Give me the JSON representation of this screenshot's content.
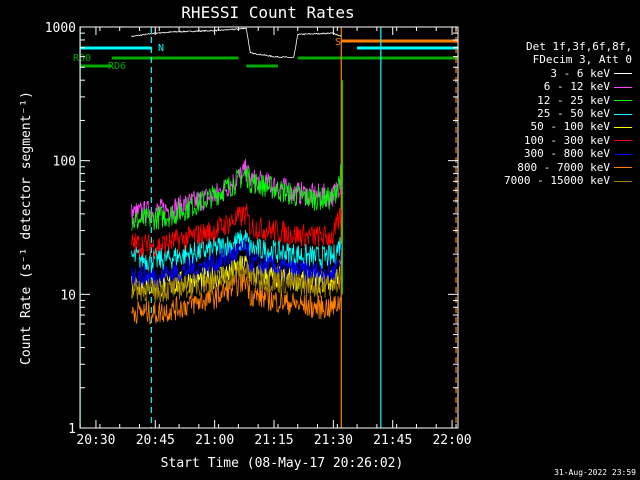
{
  "chart_data": {
    "type": "line",
    "title": "RHESSI Count Rates",
    "xlabel": "Start Time (08-May-17 20:26:02)",
    "ylabel": "Count Rate (s⁻¹ detector segment⁻¹)",
    "yscale": "log",
    "ylim": [
      1,
      1000
    ],
    "xlim_minutes_after_2026": [
      -0.03,
      95.5
    ],
    "x_tick_labels": [
      "20:30",
      "20:45",
      "21:00",
      "21:15",
      "21:30",
      "21:45",
      "22:00"
    ],
    "y_tick_labels": [
      "1",
      "10",
      "100",
      "1000"
    ],
    "legend": {
      "placement": "right",
      "header": [
        "Det 1f,3f,6f,8f,",
        "FDecim 3, Att 0"
      ],
      "entries": [
        "3 - 6 keV",
        "6 - 12 keV",
        "12 - 25 keV",
        "25 - 50 keV",
        "50 - 100 keV",
        "100 - 300 keV",
        "300 - 800 keV",
        "800 - 7000 keV",
        "7000 - 15000 keV"
      ]
    },
    "series": [
      {
        "name": "3 - 6 keV",
        "color": "#ffffff",
        "times": [
          "20:39",
          "20:45",
          "20:50",
          "21:00",
          "21:05",
          "21:08",
          "21:09",
          "21:15",
          "21:20",
          "21:21",
          "21:30",
          "21:32"
        ],
        "values": [
          850,
          900,
          920,
          940,
          960,
          980,
          640,
          600,
          590,
          880,
          900,
          850
        ]
      },
      {
        "name": "6 - 12 keV",
        "color": "#ff44ff",
        "times": [
          "20:39",
          "20:45",
          "20:50",
          "21:00",
          "21:05",
          "21:08",
          "21:09",
          "21:15",
          "21:20",
          "21:25",
          "21:30",
          "21:32"
        ],
        "values": [
          40,
          42,
          44,
          55,
          70,
          85,
          72,
          65,
          58,
          55,
          55,
          70
        ]
      },
      {
        "name": "12 - 25 keV",
        "color": "#00ff00",
        "times": [
          "20:39",
          "20:45",
          "20:50",
          "21:00",
          "21:05",
          "21:08",
          "21:09",
          "21:15",
          "21:20",
          "21:25",
          "21:30",
          "21:32"
        ],
        "values": [
          35,
          37,
          40,
          55,
          68,
          80,
          70,
          62,
          55,
          52,
          52,
          80
        ]
      },
      {
        "name": "25 - 50 keV",
        "color": "#00ffff",
        "times": [
          "20:39",
          "20:45",
          "20:50",
          "21:00",
          "21:05",
          "21:08",
          "21:09",
          "21:15",
          "21:20",
          "21:25",
          "21:30",
          "21:32"
        ],
        "values": [
          19,
          18,
          19,
          22,
          24,
          26,
          22,
          21,
          20,
          19,
          19,
          25
        ]
      },
      {
        "name": "50 - 100 keV",
        "color": "#ffff00",
        "times": [
          "20:39",
          "20:45",
          "20:50",
          "21:00",
          "21:05",
          "21:08",
          "21:09",
          "21:15",
          "21:20",
          "21:25",
          "21:30",
          "21:32"
        ],
        "values": [
          12,
          11.5,
          12,
          13.5,
          15,
          17,
          14,
          13.5,
          13,
          12.5,
          12.5,
          16
        ]
      },
      {
        "name": "100 - 300 keV",
        "color": "#ff0000",
        "times": [
          "20:39",
          "20:45",
          "20:50",
          "21:00",
          "21:05",
          "21:08",
          "21:09",
          "21:15",
          "21:20",
          "21:25",
          "21:30",
          "21:32"
        ],
        "values": [
          24,
          23,
          25,
          30,
          36,
          40,
          32,
          30,
          28,
          27,
          27,
          40
        ]
      },
      {
        "name": "300 - 800 keV",
        "color": "#0000ff",
        "times": [
          "20:39",
          "20:45",
          "20:50",
          "21:00",
          "21:05",
          "21:08",
          "21:09",
          "21:15",
          "21:20",
          "21:25",
          "21:30",
          "21:32"
        ],
        "values": [
          14,
          13.5,
          14.5,
          17,
          20,
          22,
          17,
          16,
          15,
          14.5,
          14.5,
          20
        ]
      },
      {
        "name": "800 - 7000 keV",
        "color": "#ff8000",
        "times": [
          "20:39",
          "20:45",
          "20:50",
          "21:00",
          "21:05",
          "21:08",
          "21:09",
          "21:15",
          "21:20",
          "21:25",
          "21:30",
          "21:32"
        ],
        "values": [
          7.5,
          7.2,
          7.8,
          9.5,
          11.5,
          13,
          10,
          9,
          8.5,
          8,
          8,
          9
        ]
      },
      {
        "name": "7000 - 15000 keV",
        "color": "#a08000",
        "times": [
          "20:39",
          "20:45",
          "20:50",
          "21:00",
          "21:05",
          "21:08",
          "21:09",
          "21:15",
          "21:20",
          "21:25",
          "21:30",
          "21:32"
        ],
        "values": [
          11,
          10.5,
          11,
          12.5,
          14,
          15.5,
          13,
          12.5,
          12,
          11.5,
          11.5,
          14
        ]
      }
    ],
    "annotations": [
      {
        "label": "N",
        "color": "#00ffff",
        "time": "20:45"
      },
      {
        "label": "S",
        "color": "#ff8000",
        "time": "21:33"
      },
      {
        "label": "RD0",
        "color": "#00aa00"
      },
      {
        "label": "RD6",
        "color": "#00aa00"
      }
    ],
    "vertical_lines": [
      {
        "time": "20:26",
        "color": "#00ffff",
        "style": "solid"
      },
      {
        "time": "20:44",
        "color": "#00ffff",
        "style": "dashed"
      },
      {
        "time": "21:32",
        "color": "#ff8000",
        "style": "solid"
      },
      {
        "time": "21:42",
        "color": "#00ffff",
        "style": "solid"
      },
      {
        "time": "22:01",
        "color": "#ff8000",
        "style": "dashed"
      }
    ]
  },
  "footer": {
    "timestamp": "31-Aug-2022 23:59"
  }
}
